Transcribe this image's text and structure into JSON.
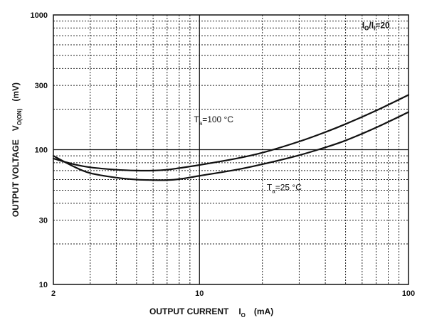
{
  "chart_data": {
    "type": "line",
    "title": "",
    "xlabel": "OUTPUT CURRENT",
    "xlabel_symbol": "I",
    "xlabel_symbol_sub": "O",
    "xlabel_unit": "(mA)",
    "ylabel": "OUTPUT VOLTAGE",
    "ylabel_symbol": "V",
    "ylabel_symbol_sub": "O(ON)",
    "ylabel_unit": "(mV)",
    "x_scale": "log",
    "y_scale": "log",
    "xlim": [
      2,
      100
    ],
    "ylim": [
      10,
      1000
    ],
    "x_tick_labels": [
      "2",
      "10",
      "100"
    ],
    "y_tick_labels": [
      "1000",
      "300",
      "100",
      "30",
      "10"
    ],
    "grid": true,
    "condition": {
      "text_i1": "I",
      "text_sub1": "O",
      "text_sep": "/I",
      "text_sub2": "I",
      "text_val": "=20"
    },
    "series": [
      {
        "name": "Ta=100 °C",
        "label_main": "T",
        "label_sub": "a",
        "label_value": "=100 °C",
        "x": [
          2,
          2.5,
          3,
          4,
          5,
          6,
          7,
          8,
          10,
          15,
          20,
          30,
          40,
          50,
          70,
          100
        ],
        "y": [
          86,
          78,
          74,
          71,
          70,
          70,
          71,
          73,
          77,
          86,
          95,
          115,
          135,
          155,
          195,
          255
        ]
      },
      {
        "name": "Ta=25 °C",
        "label_main": "T",
        "label_sub": "a",
        "label_value": "=25 °C",
        "x": [
          2,
          2.5,
          3,
          4,
          5,
          6,
          7,
          8,
          10,
          15,
          20,
          30,
          40,
          50,
          70,
          100
        ],
        "y": [
          90,
          75,
          67,
          62,
          60,
          59.5,
          59.5,
          60.5,
          64,
          71,
          78,
          91,
          104,
          117,
          146,
          190
        ]
      }
    ]
  }
}
